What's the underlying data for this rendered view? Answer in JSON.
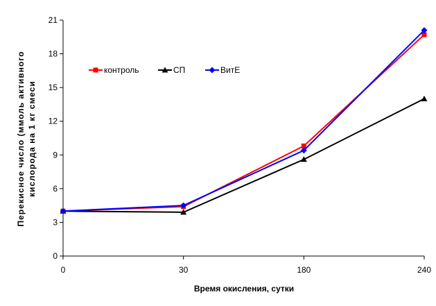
{
  "chart_data": {
    "type": "line",
    "title": "",
    "xlabel": "Время окисления, сутки",
    "ylabel_lines": [
      "Перекисное число (ммоль активного",
      "кислорода на 1 кг смеси"
    ],
    "categories": [
      "0",
      "30",
      "180",
      "240"
    ],
    "ylim": [
      0,
      21
    ],
    "yticks": [
      0,
      3,
      6,
      9,
      12,
      15,
      18,
      21
    ],
    "grid": false,
    "legend_position": "top-left",
    "series": [
      {
        "name": "контроль",
        "color": "#ff0000",
        "marker": "square",
        "values": [
          4.0,
          4.4,
          9.8,
          19.7
        ]
      },
      {
        "name": "СП",
        "color": "#000000",
        "marker": "triangle",
        "values": [
          4.0,
          3.9,
          8.6,
          14.0
        ]
      },
      {
        "name": "ВитЕ",
        "color": "#0000ff",
        "marker": "diamond",
        "values": [
          4.0,
          4.5,
          9.4,
          20.1
        ]
      }
    ]
  }
}
